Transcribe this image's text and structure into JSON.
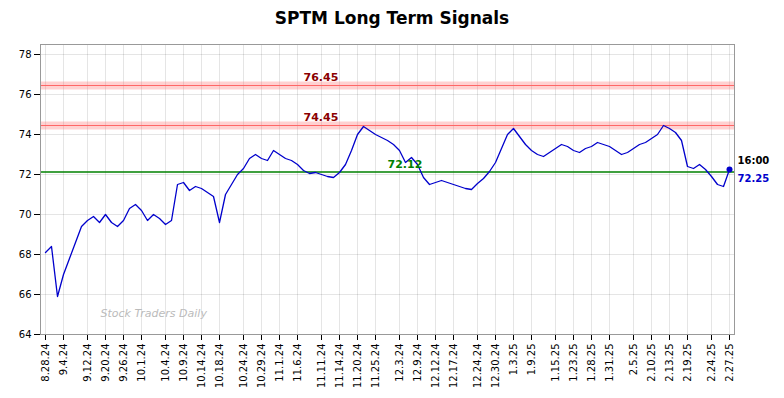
{
  "chart_data": {
    "type": "line",
    "title": "SPTM Long Term Signals",
    "categories": [
      "8.28.24",
      null,
      null,
      "9.4.24",
      null,
      null,
      null,
      "9.12.24",
      null,
      null,
      "9.20.24",
      null,
      null,
      "9.26.24",
      null,
      null,
      "10.1.24",
      null,
      null,
      null,
      "10.4.24",
      null,
      null,
      "10.9.24",
      null,
      null,
      "10.14.24",
      null,
      null,
      "10.18.24",
      null,
      null,
      null,
      "10.24.24",
      null,
      null,
      "10.29.24",
      null,
      null,
      "11.1.24",
      null,
      null,
      "11.6.24",
      null,
      null,
      null,
      "11.11.24",
      null,
      null,
      "11.14.24",
      null,
      null,
      "11.20.24",
      null,
      null,
      "11.25.24",
      null,
      null,
      null,
      "12.3.24",
      null,
      null,
      "12.9.24",
      null,
      null,
      "12.12.24",
      null,
      null,
      "12.17.24",
      null,
      null,
      null,
      "12.24.24",
      null,
      null,
      "12.30.24",
      null,
      null,
      "1.3.25",
      null,
      null,
      "1.9.25",
      null,
      null,
      null,
      "1.15.25",
      null,
      null,
      "1.23.25",
      null,
      null,
      "1.28.25",
      null,
      null,
      "1.31.25",
      null,
      null,
      null,
      "2.5.25",
      null,
      null,
      "2.10.25",
      null,
      null,
      "2.13.25",
      null,
      null,
      "2.19.25",
      null,
      null,
      null,
      "2.24.25",
      null,
      null,
      "2.27.25"
    ],
    "values": [
      68.1,
      68.4,
      65.9,
      67.0,
      67.8,
      68.6,
      69.4,
      69.7,
      69.9,
      69.6,
      70.0,
      69.6,
      69.4,
      69.7,
      70.3,
      70.5,
      70.2,
      69.7,
      70.0,
      69.8,
      69.5,
      69.7,
      71.5,
      71.6,
      71.2,
      71.4,
      71.3,
      71.1,
      70.9,
      69.6,
      71.0,
      71.5,
      72.0,
      72.3,
      72.8,
      73.0,
      72.8,
      72.7,
      73.2,
      73.0,
      72.8,
      72.7,
      72.5,
      72.2,
      72.05,
      72.1,
      72.0,
      71.9,
      71.85,
      72.1,
      72.5,
      73.2,
      74.0,
      74.4,
      74.2,
      74.0,
      73.85,
      73.7,
      73.5,
      73.2,
      72.6,
      72.85,
      72.5,
      71.85,
      71.5,
      71.6,
      71.7,
      71.6,
      71.5,
      71.4,
      71.3,
      71.25,
      71.55,
      71.8,
      72.15,
      72.6,
      73.3,
      74.0,
      74.3,
      73.9,
      73.5,
      73.2,
      73.0,
      72.9,
      73.1,
      73.3,
      73.5,
      73.4,
      73.2,
      73.1,
      73.3,
      73.4,
      73.6,
      73.5,
      73.4,
      73.2,
      73.0,
      73.1,
      73.3,
      73.5,
      73.6,
      73.8,
      74.0,
      74.45,
      74.3,
      74.1,
      73.7,
      72.4,
      72.3,
      72.5,
      72.25,
      71.9,
      71.5,
      71.4,
      72.25
    ],
    "color": "#0000cc",
    "ylim": [
      64,
      78.5
    ],
    "yticks": [
      64,
      66,
      68,
      70,
      72,
      74,
      76,
      78
    ],
    "grid": true,
    "reference_lines": [
      {
        "value": 76.45,
        "color": "#ff6666",
        "line_style": "band",
        "label": "76.45",
        "label_color": "darkred"
      },
      {
        "value": 74.45,
        "color": "#ff6666",
        "line_style": "band",
        "label": "74.45",
        "label_color": "darkred"
      },
      {
        "value": 72.12,
        "color": "green",
        "line_style": "solid",
        "label": "72.12",
        "label_color": "green"
      }
    ],
    "last_point": {
      "value": 72.25,
      "marker": "o",
      "labels": [
        {
          "text": "16:00",
          "color": "black"
        },
        {
          "text": "72.25",
          "color": "#0000cc"
        }
      ]
    },
    "watermark": "Stock Traders Daily"
  }
}
